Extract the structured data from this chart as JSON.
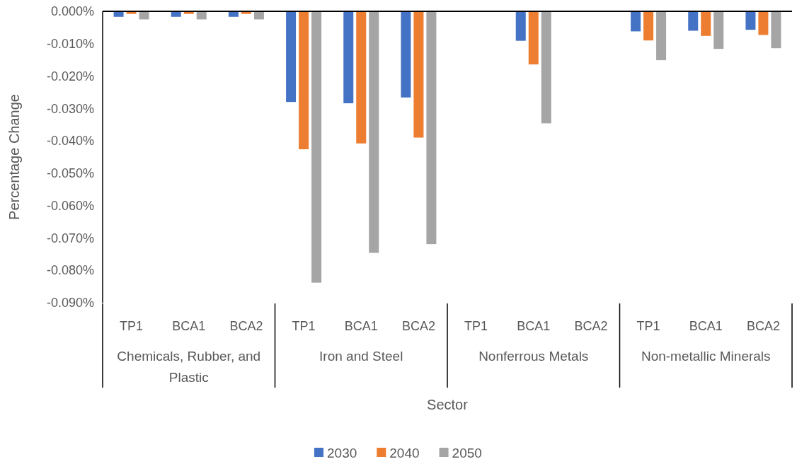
{
  "chart_data": {
    "type": "bar",
    "xlabel": "Sector",
    "ylabel": "Percentage Change",
    "categories": [
      "TP1",
      "BCA1",
      "BCA2",
      "TP1",
      "BCA1",
      "BCA2",
      "TP1",
      "BCA1",
      "BCA2",
      "TP1",
      "BCA1",
      "BCA2"
    ],
    "annotations": [
      "Chemicals, Rubber, and Plastic",
      "Iron and Steel",
      "Nonferrous Metals",
      "Non-metallic Minerals"
    ],
    "series": [
      {
        "name": "2030",
        "color": "#4472c4",
        "values": [
          -0.0017,
          -0.0017,
          -0.0017,
          -0.028,
          -0.0284,
          -0.0266,
          0,
          -0.0091,
          0,
          -0.0062,
          -0.006,
          -0.0057
        ]
      },
      {
        "name": "2040",
        "color": "#ed7d31",
        "values": [
          -0.0008,
          -0.0008,
          -0.0008,
          -0.0426,
          -0.0408,
          -0.039,
          0,
          -0.0164,
          0,
          -0.009,
          -0.0076,
          -0.0073
        ]
      },
      {
        "name": "2050",
        "color": "#a5a5a5",
        "values": [
          -0.0025,
          -0.0025,
          -0.0025,
          -0.0838,
          -0.0746,
          -0.0719,
          0,
          -0.0346,
          0,
          -0.0151,
          -0.0116,
          -0.0114
        ]
      }
    ],
    "ylim": [
      -0.09,
      0
    ],
    "yticks": [
      {
        "value": 0,
        "label": "0.000%"
      },
      {
        "value": -0.01,
        "label": "-0.010%"
      },
      {
        "value": -0.02,
        "label": "-0.020%"
      },
      {
        "value": -0.03,
        "label": "-0.030%"
      },
      {
        "value": -0.04,
        "label": "-0.040%"
      },
      {
        "value": -0.05,
        "label": "-0.050%"
      },
      {
        "value": -0.06,
        "label": "-0.060%"
      },
      {
        "value": -0.07,
        "label": "-0.070%"
      },
      {
        "value": -0.08,
        "label": "-0.080%"
      },
      {
        "value": -0.09,
        "label": "-0.090%"
      }
    ],
    "grid": false,
    "legend": "bottom"
  }
}
